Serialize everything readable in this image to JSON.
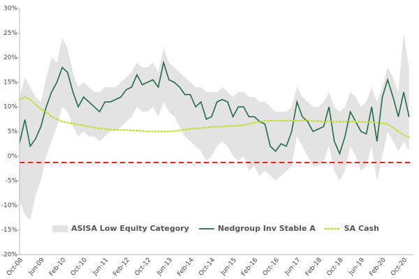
{
  "chart_data": {
    "type": "line",
    "categories": [
      "Oct-08",
      null,
      null,
      null,
      "Jun-09",
      null,
      null,
      null,
      "Feb-10",
      null,
      null,
      null,
      "Oct-10",
      null,
      null,
      null,
      "Jun-11",
      null,
      null,
      null,
      "Feb-12",
      null,
      null,
      null,
      "Oct-12",
      null,
      null,
      null,
      "Jun-13",
      null,
      null,
      null,
      "Feb-14",
      null,
      null,
      null,
      "Oct-14",
      null,
      null,
      null,
      "Jun-15",
      null,
      null,
      null,
      "Feb-16",
      null,
      null,
      null,
      "Oct-16",
      null,
      null,
      null,
      "Jun-17",
      null,
      null,
      null,
      "Feb-18",
      null,
      null,
      null,
      "Oct-18",
      null,
      null,
      null,
      "Jun-19",
      null,
      null,
      null,
      "Feb-20",
      null,
      null,
      null,
      "Oct-20",
      null
    ],
    "series": [
      {
        "name": "ASISA Low Equity Category",
        "color": "#e3e3e3",
        "high": [
          12,
          16,
          14,
          12,
          11,
          16,
          20,
          19,
          24,
          22,
          17,
          14,
          15,
          14,
          13,
          13,
          14,
          14,
          14,
          15,
          16,
          17,
          19,
          18,
          18,
          19,
          17,
          22,
          19,
          18,
          17,
          16,
          15,
          14,
          14,
          13,
          13,
          13,
          14,
          13,
          12,
          13,
          13,
          12,
          12,
          11,
          11,
          10,
          9,
          9,
          9,
          10,
          14,
          12,
          11,
          10,
          10,
          11,
          13,
          10,
          9,
          10,
          13,
          12,
          10,
          11,
          14,
          11,
          14,
          18,
          16,
          13,
          25,
          18
        ],
        "low": [
          -9,
          -12,
          -13,
          -8,
          -5,
          0,
          3,
          6,
          10,
          9,
          6,
          4,
          5,
          4,
          4,
          3,
          4,
          5,
          5,
          6,
          7,
          8,
          10,
          9,
          9,
          10,
          8,
          11,
          9,
          8,
          6,
          4,
          3,
          2,
          1,
          -1,
          0,
          2,
          3,
          2,
          0,
          -1,
          0,
          -3,
          -2,
          -4,
          -3,
          -4,
          -5,
          -4,
          -3,
          -2,
          4,
          2,
          0,
          -2,
          -2,
          -1,
          2,
          -3,
          -5,
          -3,
          2,
          0,
          -3,
          -2,
          2,
          -5,
          0,
          5,
          3,
          1,
          3,
          1
        ]
      },
      {
        "name": "Nedgroup Inv Stable A",
        "color": "#1e6b45",
        "values": [
          2.7,
          7.4,
          2,
          3.5,
          6,
          10,
          13,
          15,
          18,
          17,
          13,
          10,
          12,
          11,
          10,
          9,
          11,
          11,
          11.5,
          12,
          13.5,
          14,
          16.5,
          14.5,
          15,
          15.5,
          14,
          19,
          15.5,
          15,
          14,
          12.5,
          12.5,
          10,
          11,
          7.5,
          8,
          11,
          11.5,
          11,
          8,
          10,
          10,
          8,
          8,
          7,
          6.5,
          2,
          1,
          2.5,
          2,
          5,
          11,
          8,
          7,
          5,
          5.5,
          6,
          10,
          3,
          0.5,
          4,
          9,
          7,
          5,
          4.5,
          10,
          3,
          12,
          15.5,
          12,
          8,
          13,
          8
        ]
      },
      {
        "name": "SA Cash",
        "color": "#c5dc2a",
        "values": [
          11.5,
          12,
          11.5,
          10.5,
          9.5,
          9,
          8,
          7.5,
          7,
          6.8,
          6.6,
          6.4,
          6.2,
          6,
          5.8,
          5.6,
          5.5,
          5.4,
          5.4,
          5.3,
          5.3,
          5.2,
          5.2,
          5.1,
          5,
          5,
          5,
          5,
          5,
          5.1,
          5.2,
          5.4,
          5.5,
          5.6,
          5.7,
          5.8,
          5.9,
          6,
          6,
          6.1,
          6.1,
          6.2,
          6.3,
          6.5,
          6.8,
          7,
          7.1,
          7.2,
          7.2,
          7.2,
          7.2,
          7.2,
          7.2,
          7.2,
          7.2,
          7.1,
          7.1,
          7,
          7,
          7,
          7,
          7,
          7,
          7,
          7,
          6.9,
          6.9,
          6.8,
          6.7,
          6.5,
          5.8,
          5,
          4.3,
          3.8
        ]
      }
    ],
    "reference_line": {
      "value": -1.3,
      "color": "#d9262b"
    },
    "ylim": [
      -20,
      30
    ],
    "yticks": [
      {
        "value": -20,
        "label": "-20%"
      },
      {
        "value": -15,
        "label": "-15%"
      },
      {
        "value": -10,
        "label": "-10%"
      },
      {
        "value": -5,
        "label": "-5%"
      },
      {
        "value": 0,
        "label": "0%"
      },
      {
        "value": 5,
        "label": "5%"
      },
      {
        "value": 10,
        "label": "10%"
      },
      {
        "value": 15,
        "label": "15%"
      },
      {
        "value": 20,
        "label": "20%"
      },
      {
        "value": 25,
        "label": "25%"
      },
      {
        "value": 30,
        "label": "30%"
      }
    ],
    "grid": false
  }
}
